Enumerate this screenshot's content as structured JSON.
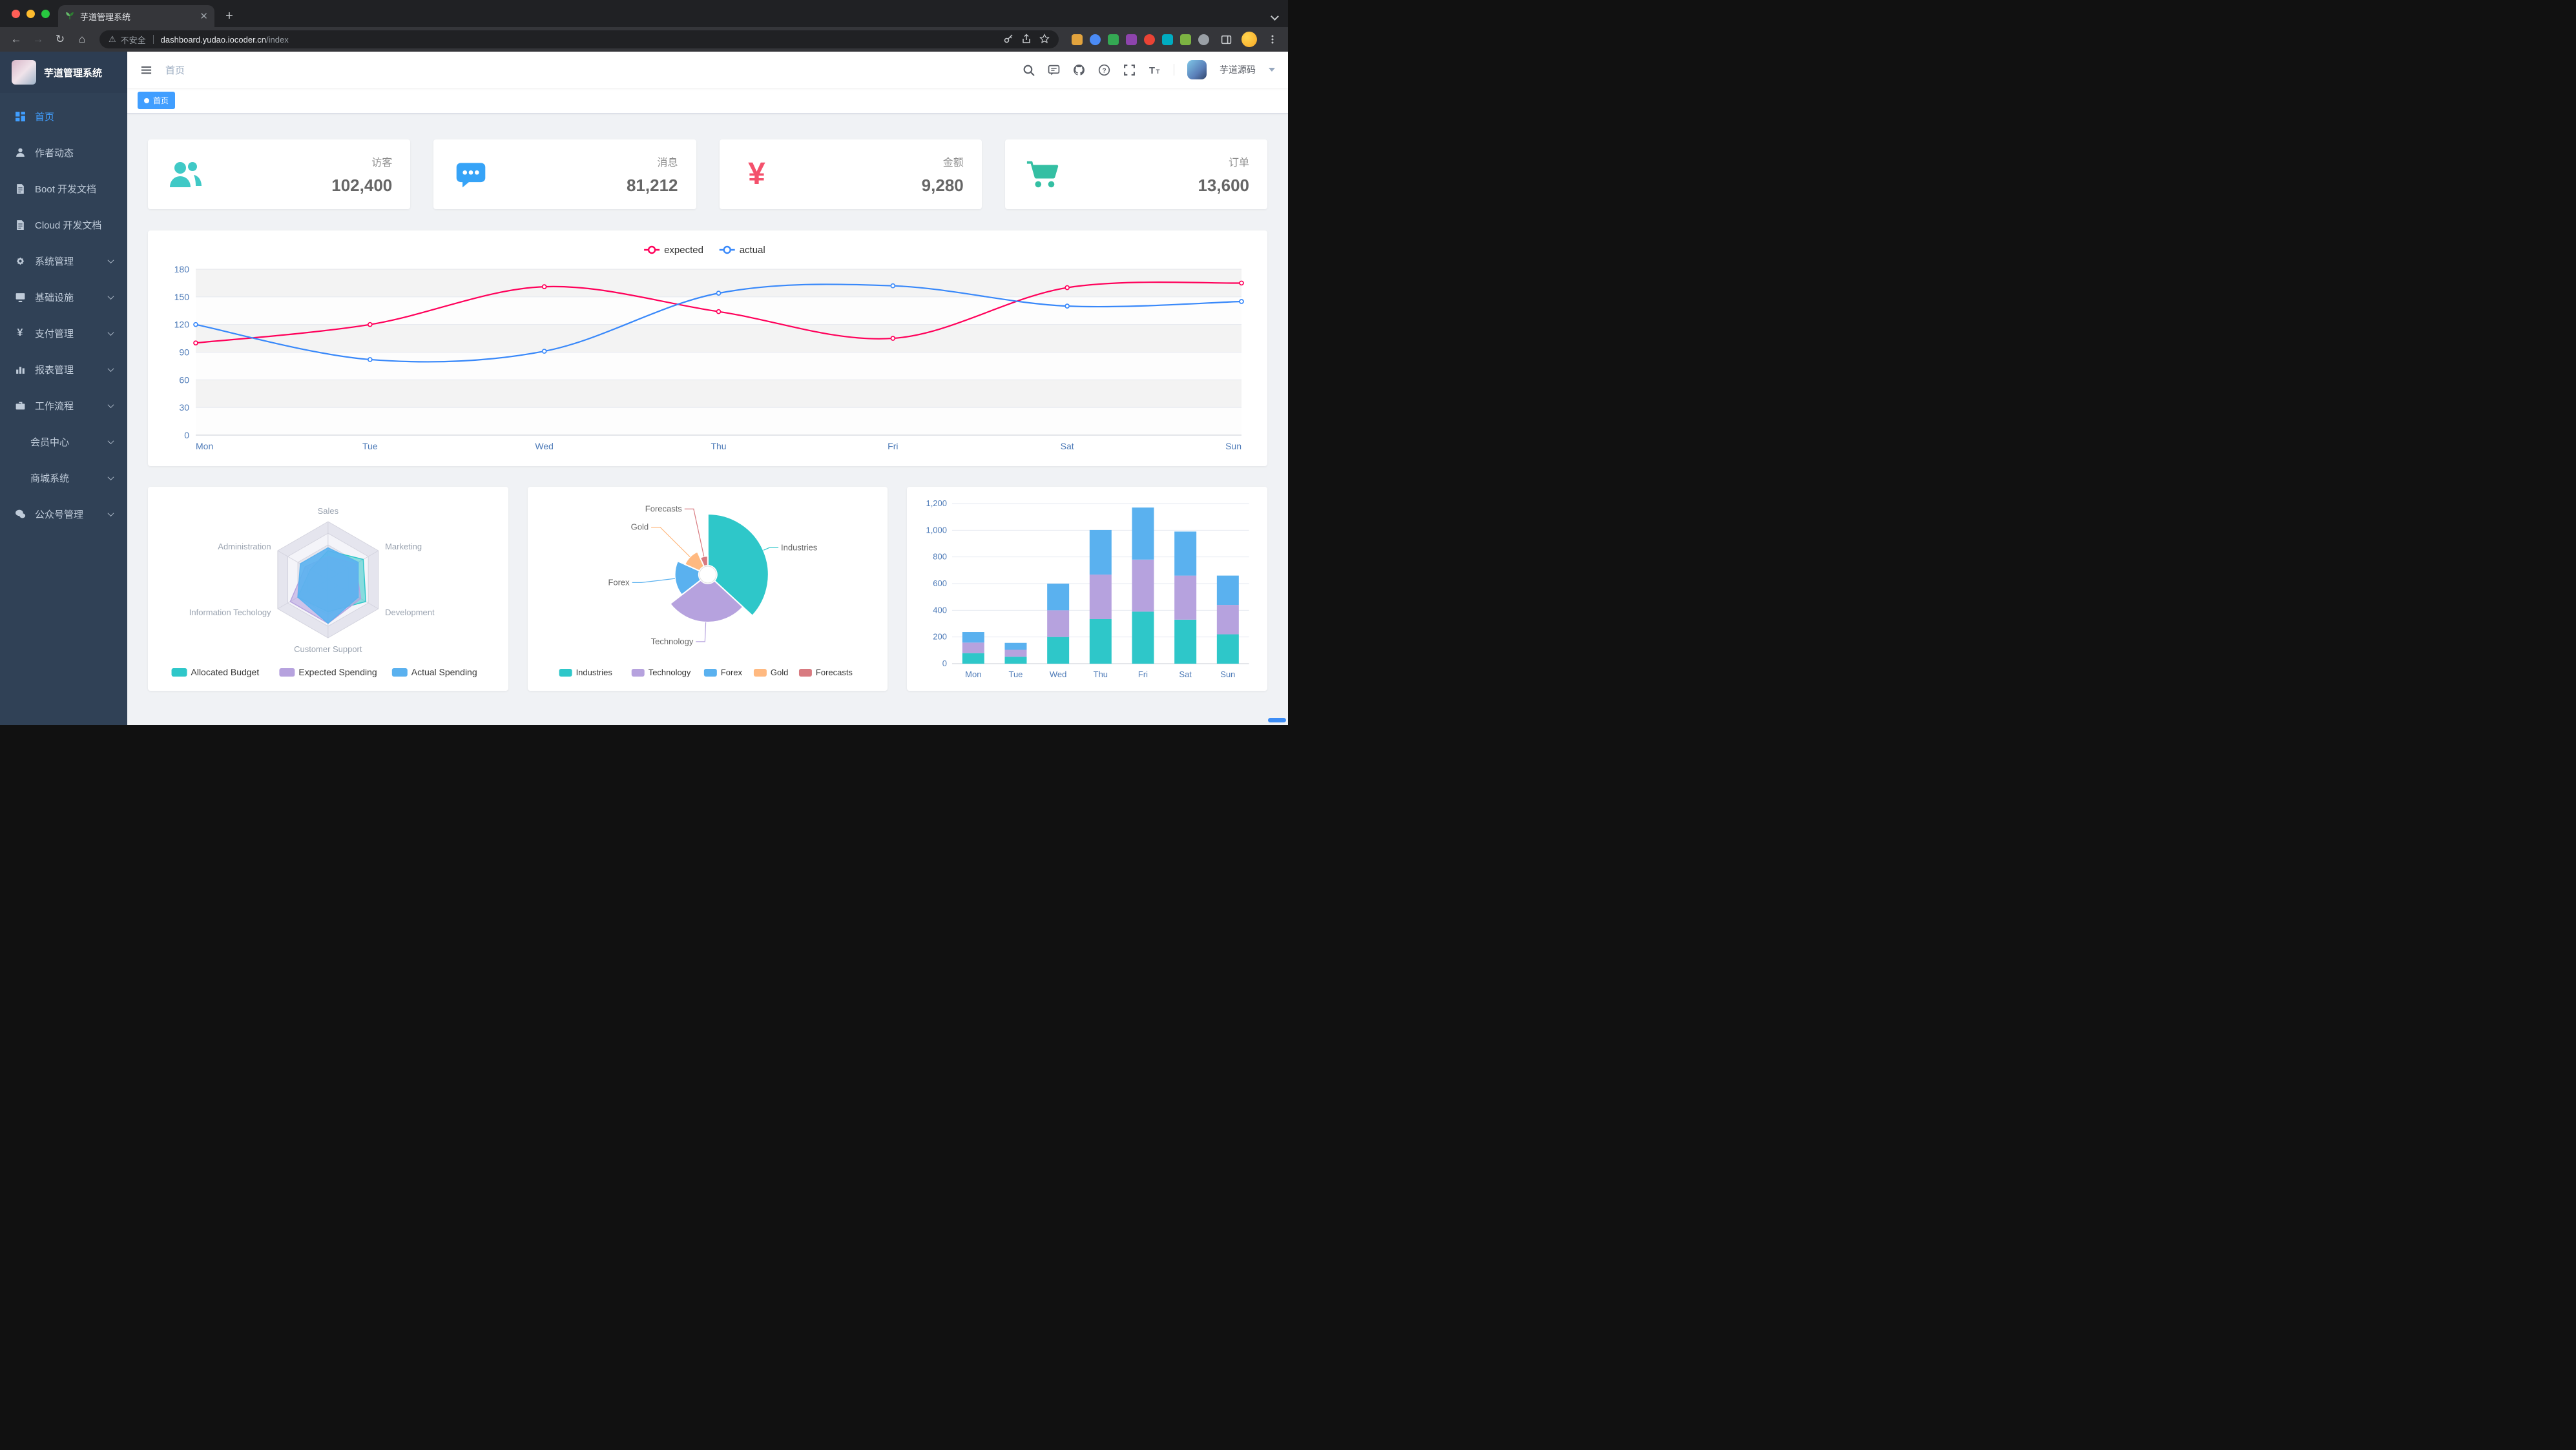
{
  "browser": {
    "tab_title": "芋道管理系统",
    "new_tab_label": "+",
    "security_text": "不安全",
    "url_host": "dashboard.yudao.iocoder.cn",
    "url_path": "/index",
    "extensions": [
      "#e2a33d",
      "#4b8bf5",
      "#34a853",
      "#8e44ad",
      "#ea4335",
      "#00acc1",
      "#7cb342",
      "#9aa0a6"
    ]
  },
  "sidebar": {
    "logo_title": "芋道管理系统",
    "items": [
      {
        "label": "首页",
        "icon": "dashboard-icon",
        "active": true
      },
      {
        "label": "作者动态",
        "icon": "author-icon"
      },
      {
        "label": "Boot 开发文档",
        "icon": "doc-icon"
      },
      {
        "label": "Cloud 开发文档",
        "icon": "doc-icon"
      },
      {
        "label": "系统管理",
        "icon": "gear-icon",
        "arrow": true
      },
      {
        "label": "基础设施",
        "icon": "infra-icon",
        "arrow": true
      },
      {
        "label": "支付管理",
        "icon": "pay-icon",
        "arrow": true
      },
      {
        "label": "报表管理",
        "icon": "report-icon",
        "arrow": true
      },
      {
        "label": "工作流程",
        "icon": "workflow-icon",
        "arrow": true
      },
      {
        "label": "会员中心",
        "sub": true,
        "arrow": true
      },
      {
        "label": "商城系统",
        "sub": true,
        "arrow": true
      },
      {
        "label": "公众号管理",
        "icon": "wechat-icon",
        "arrow": true
      }
    ]
  },
  "navbar": {
    "breadcrumb": "首页",
    "username": "芋道源码"
  },
  "tagsbar": {
    "tags": [
      {
        "label": "首页",
        "active": true
      }
    ]
  },
  "stats": [
    {
      "label": "访客",
      "value": "102,400",
      "icon": "visitors-icon",
      "color": "#40c9c6"
    },
    {
      "label": "消息",
      "value": "81,212",
      "icon": "messages-icon",
      "color": "#36a3f7"
    },
    {
      "label": "金额",
      "value": "9,280",
      "icon": "money-icon",
      "color": "#f4516c"
    },
    {
      "label": "订单",
      "value": "13,600",
      "icon": "orders-icon",
      "color": "#34bfa3"
    }
  ],
  "chart_data": [
    {
      "type": "line",
      "categories": [
        "Mon",
        "Tue",
        "Wed",
        "Thu",
        "Fri",
        "Sat",
        "Sun"
      ],
      "series": [
        {
          "name": "expected",
          "color": "#FF005A",
          "values": [
            100,
            120,
            161,
            134,
            105,
            160,
            165
          ]
        },
        {
          "name": "actual",
          "color": "#3888fa",
          "values": [
            120,
            82,
            91,
            154,
            162,
            140,
            145
          ]
        }
      ],
      "ylim": [
        0,
        180
      ],
      "ytick": 30,
      "legend_position": "top",
      "grid": true,
      "axis_color": "#4e7bb8"
    },
    {
      "type": "radar",
      "levels": 5,
      "indicators": [
        {
          "name": "Sales",
          "max": 10000
        },
        {
          "name": "Administration",
          "max": 20000
        },
        {
          "name": "Information Techology",
          "max": 20000
        },
        {
          "name": "Customer Support",
          "max": 20000
        },
        {
          "name": "Development",
          "max": 20000
        },
        {
          "name": "Marketing",
          "max": 20000
        }
      ],
      "series": [
        {
          "name": "Allocated Budget",
          "color": "#2ec7c9",
          "values": [
            5000,
            7000,
            12000,
            11000,
            15000,
            14000
          ]
        },
        {
          "name": "Expected Spending",
          "color": "#b6a2de",
          "values": [
            4000,
            9000,
            15000,
            15000,
            13000,
            11000
          ]
        },
        {
          "name": "Actual Spending",
          "color": "#5ab1ef",
          "values": [
            5500,
            11000,
            12000,
            15000,
            12000,
            12000
          ]
        }
      ],
      "legend_position": "bottom"
    },
    {
      "type": "pie",
      "rose": true,
      "slices": [
        {
          "name": "Industries",
          "value": 320,
          "color": "#2ec7c9"
        },
        {
          "name": "Technology",
          "value": 240,
          "color": "#b6a2de"
        },
        {
          "name": "Forex",
          "value": 149,
          "color": "#5ab1ef"
        },
        {
          "name": "Gold",
          "value": 100,
          "color": "#ffb980"
        },
        {
          "name": "Forecasts",
          "value": 59,
          "color": "#d87a80"
        }
      ],
      "legend_position": "bottom"
    },
    {
      "type": "bar",
      "stacked": true,
      "categories": [
        "Mon",
        "Tue",
        "Wed",
        "Thu",
        "Fri",
        "Sat",
        "Sun"
      ],
      "series": [
        {
          "color": "#2ec7c9",
          "values": [
            79,
            52,
            200,
            334,
            390,
            330,
            220
          ]
        },
        {
          "color": "#b6a2de",
          "values": [
            79,
            52,
            200,
            334,
            390,
            330,
            220
          ]
        },
        {
          "color": "#5ab1ef",
          "values": [
            79,
            52,
            200,
            334,
            390,
            330,
            220
          ]
        }
      ],
      "ylim": [
        0,
        1200
      ],
      "ytick": 200,
      "grid": true,
      "axis_color": "#4e7bb8"
    }
  ]
}
